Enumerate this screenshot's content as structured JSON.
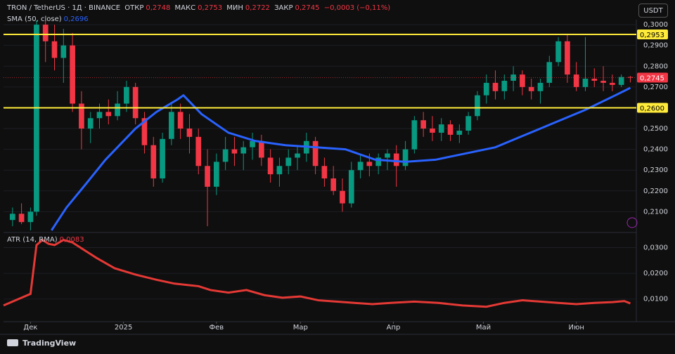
{
  "header": {
    "symbol": "TRON / TetherUS · 1Д · BINANCE",
    "open_label": "ОТКР",
    "open": "0,2748",
    "high_label": "МАКС",
    "high": "0,2753",
    "low_label": "МИН",
    "low": "0,2722",
    "close_label": "ЗАКР",
    "close": "0,2745",
    "change": "−0,0003 (−0,11%)"
  },
  "currency": "USDT",
  "branding": "TradingView",
  "chart_data": [
    {
      "type": "candlestick",
      "ylim": [
        0.201,
        0.3024
      ],
      "xlim": [
        -9,
        202
      ],
      "yticks": [
        {
          "value": 0.21,
          "label": "0,2100"
        },
        {
          "value": 0.22,
          "label": "0,2200"
        },
        {
          "value": 0.23,
          "label": "0,2300"
        },
        {
          "value": 0.24,
          "label": "0,2400"
        },
        {
          "value": 0.25,
          "label": "0,2500"
        },
        {
          "value": 0.27,
          "label": "0,2700"
        },
        {
          "value": 0.28,
          "label": "0,2800"
        },
        {
          "value": 0.29,
          "label": "0,2900"
        },
        {
          "value": 0.3,
          "label": "0,3000"
        }
      ],
      "levels": [
        {
          "value": 0.2953,
          "label": "0,2953"
        },
        {
          "value": 0.26,
          "label": "0,2600"
        }
      ],
      "level_color": "#ffeb3b",
      "last_price": {
        "value": 0.2745,
        "label": "0,2745"
      },
      "up_color": "#089981",
      "down_color": "#f23645",
      "candles": {
        "x": [
          -6,
          -3,
          0,
          2,
          5,
          8,
          11,
          14,
          17,
          20,
          23,
          26,
          29,
          32,
          35,
          38,
          41,
          44,
          47,
          50,
          53,
          56,
          59,
          62,
          65,
          68,
          71,
          74,
          77,
          80,
          83,
          86,
          89,
          92,
          95,
          98,
          101,
          104,
          107,
          110,
          113,
          116,
          119,
          122,
          125,
          128,
          131,
          134,
          137,
          140,
          143,
          146,
          149,
          152,
          155,
          158,
          161,
          164,
          167,
          170,
          173,
          176,
          179,
          182,
          185,
          188,
          191,
          194,
          197,
          200
        ],
        "open": [
          0.206,
          0.209,
          0.205,
          0.21,
          0.3,
          0.292,
          0.284,
          0.29,
          0.262,
          0.25,
          0.255,
          0.258,
          0.256,
          0.262,
          0.27,
          0.255,
          0.242,
          0.226,
          0.245,
          0.258,
          0.25,
          0.246,
          0.232,
          0.222,
          0.234,
          0.24,
          0.238,
          0.241,
          0.244,
          0.236,
          0.228,
          0.232,
          0.236,
          0.238,
          0.244,
          0.232,
          0.226,
          0.22,
          0.214,
          0.23,
          0.234,
          0.232,
          0.236,
          0.238,
          0.232,
          0.24,
          0.254,
          0.25,
          0.248,
          0.252,
          0.247,
          0.249,
          0.256,
          0.266,
          0.272,
          0.268,
          0.273,
          0.276,
          0.27,
          0.268,
          0.272,
          0.282,
          0.292,
          0.276,
          0.27,
          0.274,
          0.273,
          0.272,
          0.271,
          0.2748
        ],
        "high": [
          0.212,
          0.214,
          0.212,
          0.302,
          0.302,
          0.3,
          0.298,
          0.296,
          0.268,
          0.258,
          0.262,
          0.264,
          0.268,
          0.273,
          0.272,
          0.258,
          0.246,
          0.248,
          0.262,
          0.262,
          0.257,
          0.25,
          0.24,
          0.238,
          0.246,
          0.246,
          0.244,
          0.248,
          0.247,
          0.24,
          0.236,
          0.24,
          0.242,
          0.248,
          0.246,
          0.236,
          0.232,
          0.226,
          0.234,
          0.238,
          0.238,
          0.238,
          0.24,
          0.242,
          0.244,
          0.256,
          0.258,
          0.256,
          0.255,
          0.254,
          0.252,
          0.258,
          0.268,
          0.276,
          0.278,
          0.276,
          0.28,
          0.278,
          0.274,
          0.274,
          0.285,
          0.294,
          0.295,
          0.282,
          0.294,
          0.279,
          0.28,
          0.276,
          0.276,
          0.2753
        ],
        "low": [
          0.203,
          0.204,
          0.201,
          0.208,
          0.282,
          0.278,
          0.272,
          0.258,
          0.24,
          0.243,
          0.25,
          0.252,
          0.254,
          0.258,
          0.252,
          0.238,
          0.222,
          0.224,
          0.242,
          0.245,
          0.238,
          0.228,
          0.203,
          0.218,
          0.23,
          0.232,
          0.23,
          0.235,
          0.232,
          0.224,
          0.222,
          0.228,
          0.23,
          0.234,
          0.228,
          0.222,
          0.218,
          0.21,
          0.212,
          0.226,
          0.227,
          0.228,
          0.23,
          0.222,
          0.23,
          0.238,
          0.246,
          0.244,
          0.244,
          0.244,
          0.243,
          0.247,
          0.254,
          0.262,
          0.264,
          0.264,
          0.268,
          0.266,
          0.264,
          0.262,
          0.27,
          0.28,
          0.272,
          0.268,
          0.268,
          0.27,
          0.268,
          0.268,
          0.27,
          0.2722
        ],
        "close": [
          0.209,
          0.205,
          0.21,
          0.3,
          0.292,
          0.284,
          0.29,
          0.262,
          0.25,
          0.255,
          0.258,
          0.256,
          0.262,
          0.27,
          0.255,
          0.242,
          0.226,
          0.245,
          0.258,
          0.25,
          0.246,
          0.232,
          0.222,
          0.234,
          0.24,
          0.238,
          0.241,
          0.244,
          0.236,
          0.228,
          0.232,
          0.236,
          0.238,
          0.244,
          0.232,
          0.226,
          0.22,
          0.214,
          0.23,
          0.234,
          0.232,
          0.236,
          0.238,
          0.232,
          0.24,
          0.254,
          0.25,
          0.248,
          0.252,
          0.247,
          0.249,
          0.256,
          0.266,
          0.272,
          0.268,
          0.273,
          0.276,
          0.27,
          0.268,
          0.272,
          0.282,
          0.292,
          0.276,
          0.27,
          0.274,
          0.273,
          0.272,
          0.271,
          0.2748,
          0.2745
        ]
      },
      "sma": {
        "name": "SMA (50, close)",
        "value_label": "0,2696",
        "color": "#2962ff",
        "x": [
          7,
          12,
          18,
          25,
          35,
          42,
          49,
          51,
          57,
          66,
          75,
          85,
          95,
          105,
          115,
          125,
          135,
          145,
          155,
          165,
          175,
          185,
          195,
          200
        ],
        "values": [
          0.201,
          0.212,
          0.2225,
          0.235,
          0.25,
          0.258,
          0.264,
          0.266,
          0.257,
          0.248,
          0.244,
          0.242,
          0.241,
          0.24,
          0.235,
          0.234,
          0.235,
          0.238,
          0.241,
          0.247,
          0.253,
          0.259,
          0.266,
          0.2696
        ]
      }
    },
    {
      "type": "line",
      "ylim": [
        0.002,
        0.0348
      ],
      "xlim": [
        -9,
        202
      ],
      "yticks": [
        {
          "value": 0.01,
          "label": "0,0100"
        },
        {
          "value": 0.02,
          "label": "0,0200"
        },
        {
          "value": 0.03,
          "label": "0,0300"
        }
      ],
      "xticks": [
        {
          "value": 0,
          "label": "Дек"
        },
        {
          "value": 31,
          "label": "2025"
        },
        {
          "value": 62,
          "label": "Фев"
        },
        {
          "value": 90,
          "label": "Мар"
        },
        {
          "value": 121,
          "label": "Апр"
        },
        {
          "value": 151,
          "label": "Май"
        },
        {
          "value": 182,
          "label": "Июн"
        }
      ],
      "series": [
        {
          "name": "ATR (14, RMA)",
          "value_label": "0,0083",
          "color": "#e53935",
          "x": [
            -9,
            -6,
            -3,
            0,
            2,
            4,
            6,
            8,
            11,
            14,
            18,
            22,
            28,
            35,
            42,
            48,
            52,
            56,
            60,
            66,
            72,
            78,
            84,
            90,
            96,
            102,
            108,
            114,
            120,
            128,
            136,
            144,
            152,
            158,
            164,
            170,
            176,
            182,
            188,
            194,
            198,
            200
          ],
          "values": [
            0.0075,
            0.009,
            0.0105,
            0.012,
            0.031,
            0.033,
            0.0315,
            0.031,
            0.033,
            0.032,
            0.029,
            0.026,
            0.022,
            0.0195,
            0.0175,
            0.016,
            0.0155,
            0.015,
            0.0135,
            0.0125,
            0.0135,
            0.0115,
            0.0105,
            0.011,
            0.0095,
            0.009,
            0.0085,
            0.008,
            0.0085,
            0.009,
            0.0085,
            0.0075,
            0.007,
            0.0085,
            0.0095,
            0.009,
            0.0085,
            0.008,
            0.0085,
            0.0088,
            0.0092,
            0.0083
          ]
        }
      ]
    }
  ]
}
